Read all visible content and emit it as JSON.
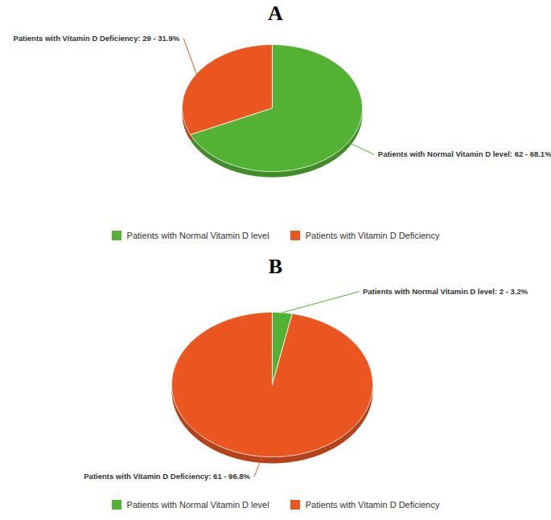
{
  "chart_data": [
    {
      "type": "pie",
      "title": "A",
      "categories": [
        "Patients with Normal Vitamin D level",
        "Patients with Vitamin D Deficiency"
      ],
      "values": [
        62,
        29
      ],
      "value_labels": [
        "Patients with Normal Vitamin D level: 62 - 68.1%",
        "Patients with Vitamin D Deficiency: 29 - 31.9%"
      ],
      "colors": [
        "#53b233",
        "#ea5520"
      ],
      "data_labels": true,
      "legend": "bottom"
    },
    {
      "type": "pie",
      "title": "B",
      "categories": [
        "Patients with Normal Vitamin D level",
        "Patients with Vitamin D Deficiency"
      ],
      "values": [
        2,
        61
      ],
      "value_labels": [
        "Patients with Normal Vitamin D level: 2 - 3.2%",
        "Patients with Vitamin D Deficiency: 61 - 96.8%"
      ],
      "colors": [
        "#53b233",
        "#ea5520"
      ],
      "data_labels": true,
      "legend": "bottom"
    }
  ]
}
